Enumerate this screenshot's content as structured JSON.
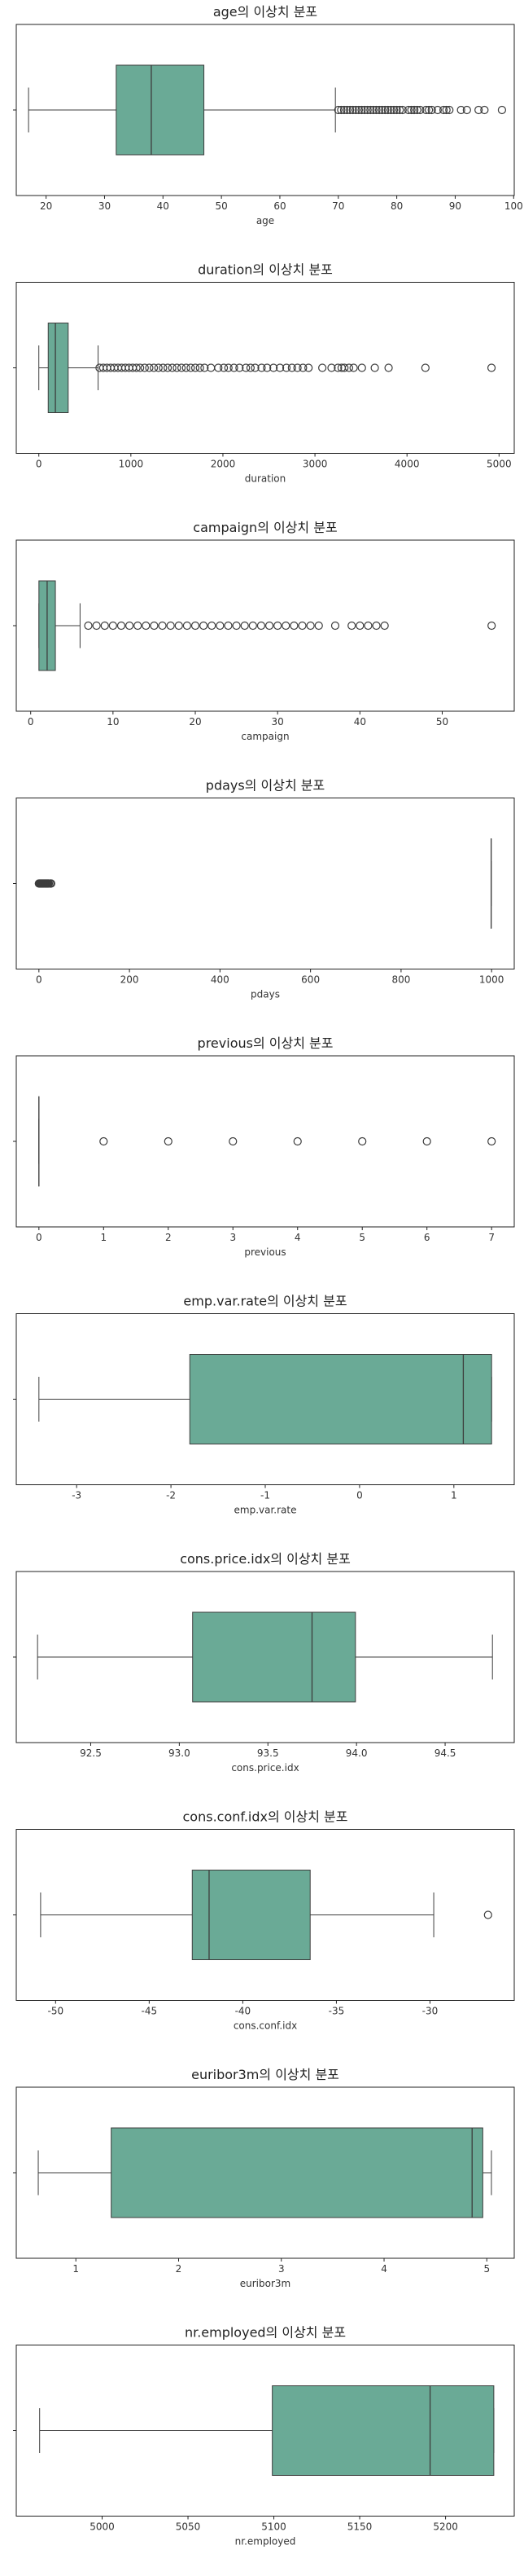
{
  "colors": {
    "box_fill": "#6aaa96",
    "box_edge": "#3d3d3d",
    "frame": "#222222",
    "outlier": "#3d3d3d"
  },
  "chart_data": [
    {
      "type": "boxplot",
      "title": "age의 이상치 분포",
      "xlabel": "age",
      "xlim": [
        14.9,
        100.1
      ],
      "ticks": [
        20,
        30,
        40,
        50,
        60,
        70,
        80,
        90,
        100
      ],
      "tick_labels": [
        "20",
        "30",
        "40",
        "50",
        "60",
        "70",
        "80",
        "90",
        "100"
      ],
      "box": {
        "whisker_low": 17,
        "q1": 32,
        "median": 38,
        "q3": 47,
        "whisker_high": 69.5
      },
      "outliers": [
        70,
        70.5,
        71,
        71.5,
        72,
        72.5,
        73,
        73.5,
        74,
        74.5,
        75,
        75.5,
        76,
        76.5,
        77,
        77.5,
        78,
        78.5,
        79,
        79.5,
        80,
        80.5,
        81,
        82,
        82.5,
        83,
        83.5,
        84,
        85,
        85.5,
        86,
        87,
        88,
        88.5,
        89,
        91,
        92,
        94,
        95,
        98
      ]
    },
    {
      "type": "boxplot",
      "title": "duration의 이상치 분포",
      "xlabel": "duration",
      "xlim": [
        -245,
        5165
      ],
      "ticks": [
        0,
        1000,
        2000,
        3000,
        4000,
        5000
      ],
      "tick_labels": [
        "0",
        "1000",
        "2000",
        "3000",
        "4000",
        "5000"
      ],
      "box": {
        "whisker_low": 0,
        "q1": 102,
        "median": 180,
        "q3": 319,
        "whisker_high": 644
      },
      "outliers": [
        660,
        700,
        740,
        780,
        820,
        860,
        900,
        940,
        980,
        1020,
        1060,
        1100,
        1150,
        1200,
        1250,
        1300,
        1350,
        1400,
        1450,
        1500,
        1550,
        1600,
        1650,
        1700,
        1750,
        1800,
        1870,
        1950,
        2010,
        2060,
        2120,
        2180,
        2250,
        2300,
        2350,
        2420,
        2480,
        2550,
        2620,
        2690,
        2750,
        2810,
        2870,
        2930,
        3080,
        3180,
        3250,
        3290,
        3320,
        3370,
        3420,
        3510,
        3650,
        3800,
        4200,
        4918
      ]
    },
    {
      "type": "boxplot",
      "title": "campaign의 이상치 분포",
      "xlabel": "campaign",
      "xlim": [
        -1.75,
        58.75
      ],
      "ticks": [
        0,
        10,
        20,
        30,
        40,
        50
      ],
      "tick_labels": [
        "0",
        "10",
        "20",
        "30",
        "40",
        "50"
      ],
      "box": {
        "whisker_low": 1,
        "q1": 1,
        "median": 2,
        "q3": 3,
        "whisker_high": 6
      },
      "outliers": [
        7,
        8,
        9,
        10,
        11,
        12,
        13,
        14,
        15,
        16,
        17,
        18,
        19,
        20,
        21,
        22,
        23,
        24,
        25,
        26,
        27,
        28,
        29,
        30,
        31,
        32,
        33,
        34,
        35,
        37,
        39,
        40,
        41,
        42,
        43,
        56
      ]
    },
    {
      "type": "boxplot",
      "title": "pdays의 이상치 분포",
      "xlabel": "pdays",
      "xlim": [
        -50,
        1050
      ],
      "ticks": [
        0,
        200,
        400,
        600,
        800,
        1000
      ],
      "tick_labels": [
        "0",
        "200",
        "400",
        "600",
        "800",
        "1000"
      ],
      "box": {
        "whisker_low": 999,
        "q1": 999,
        "median": 999,
        "q3": 999,
        "whisker_high": 999
      },
      "outliers": [
        0,
        1,
        2,
        3,
        4,
        5,
        6,
        7,
        8,
        9,
        10,
        11,
        12,
        13,
        14,
        15,
        16,
        17,
        18,
        19,
        20,
        21,
        22,
        25,
        26,
        27
      ]
    },
    {
      "type": "boxplot",
      "title": "previous의 이상치 분포",
      "xlabel": "previous",
      "xlim": [
        -0.35,
        7.35
      ],
      "ticks": [
        0,
        1,
        2,
        3,
        4,
        5,
        6,
        7
      ],
      "tick_labels": [
        "0",
        "1",
        "2",
        "3",
        "4",
        "5",
        "6",
        "7"
      ],
      "box": {
        "whisker_low": 0,
        "q1": 0,
        "median": 0,
        "q3": 0,
        "whisker_high": 0
      },
      "outliers": [
        1,
        2,
        3,
        4,
        5,
        6,
        7
      ]
    },
    {
      "type": "boxplot",
      "title": "emp.var.rate의 이상치 분포",
      "xlabel": "emp.var.rate",
      "xlim": [
        -3.64,
        1.64
      ],
      "ticks": [
        -3,
        -2,
        -1,
        0,
        1
      ],
      "tick_labels": [
        "-3",
        "-2",
        "-1",
        "0",
        "1"
      ],
      "box": {
        "whisker_low": -3.4,
        "q1": -1.8,
        "median": 1.1,
        "q3": 1.4,
        "whisker_high": 1.4
      },
      "outliers": []
    },
    {
      "type": "boxplot",
      "title": "cons.price.idx의 이상치 분포",
      "xlabel": "cons.price.idx",
      "xlim": [
        92.08,
        94.89
      ],
      "ticks": [
        92.5,
        93.0,
        93.5,
        94.0,
        94.5
      ],
      "tick_labels": [
        "92.5",
        "93.0",
        "93.5",
        "94.0",
        "94.5"
      ],
      "box": {
        "whisker_low": 92.2,
        "q1": 93.075,
        "median": 93.749,
        "q3": 93.994,
        "whisker_high": 94.767
      },
      "outliers": []
    },
    {
      "type": "boxplot",
      "title": "cons.conf.idx의 이상치 분포",
      "xlabel": "cons.conf.idx",
      "xlim": [
        -52.1,
        -25.5
      ],
      "ticks": [
        -50,
        -45,
        -40,
        -35,
        -30
      ],
      "tick_labels": [
        "-50",
        "-45",
        "-40",
        "-35",
        "-30"
      ],
      "box": {
        "whisker_low": -50.8,
        "q1": -42.7,
        "median": -41.8,
        "q3": -36.4,
        "whisker_high": -29.8
      },
      "outliers": [
        -26.9
      ]
    },
    {
      "type": "boxplot",
      "title": "euribor3m의 이상치 분포",
      "xlabel": "euribor3m",
      "xlim": [
        0.42,
        5.267
      ],
      "ticks": [
        1,
        2,
        3,
        4,
        5
      ],
      "tick_labels": [
        "1",
        "2",
        "3",
        "4",
        "5"
      ],
      "box": {
        "whisker_low": 0.634,
        "q1": 1.344,
        "median": 4.857,
        "q3": 4.961,
        "whisker_high": 5.045
      },
      "outliers": []
    },
    {
      "type": "boxplot",
      "title": "nr.employed의 이상치 분포",
      "xlabel": "nr.employed",
      "xlim": [
        4950,
        5240
      ],
      "ticks": [
        5000,
        5050,
        5100,
        5150,
        5200
      ],
      "tick_labels": [
        "5000",
        "5050",
        "5100",
        "5150",
        "5200"
      ],
      "box": {
        "whisker_low": 4963.6,
        "q1": 5099.1,
        "median": 5191,
        "q3": 5228.1,
        "whisker_high": 5228.1
      },
      "outliers": []
    }
  ]
}
